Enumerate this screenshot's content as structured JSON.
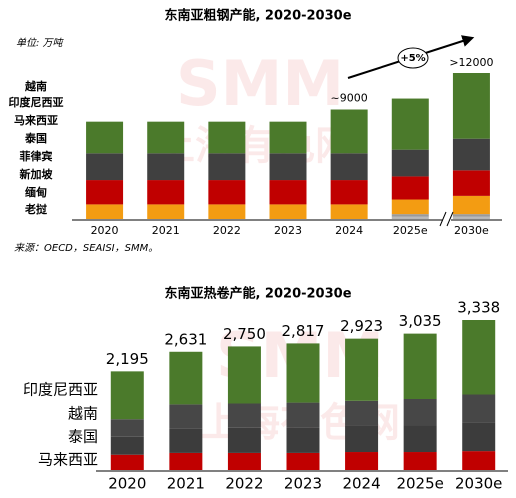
{
  "chart_data": [
    {
      "type": "stacked_bar",
      "title": "东南亚粗钢产能, 2020-2030e",
      "unit_label": "单位: 万吨",
      "source": "来源：OECD，SEAISI，SMM。",
      "watermark": [
        "SMM",
        "上海有色网"
      ],
      "annotations": [
        "~9000",
        ">12000",
        "+5%"
      ],
      "categories": [
        "2020",
        "2021",
        "2022",
        "2023",
        "2024",
        "2025e",
        "2030e"
      ],
      "series": [
        {
          "name": "越南",
          "color": "#4b7a2b",
          "values": [
            2600,
            2600,
            2600,
            2600,
            3600,
            4200,
            5400
          ]
        },
        {
          "name": "印度尼西亚",
          "color": "#404040",
          "values": [
            2200,
            2200,
            2200,
            2200,
            2200,
            2200,
            2600
          ]
        },
        {
          "name": "马来西亚",
          "color": "#c00000",
          "values": [
            2000,
            2000,
            2000,
            2000,
            2000,
            1900,
            2100
          ]
        },
        {
          "name": "泰国",
          "color": "#f39c12",
          "values": [
            1200,
            1200,
            1200,
            1200,
            1200,
            1200,
            1500
          ]
        },
        {
          "name": "菲律宾",
          "color": "#9a9a9a",
          "values": [
            0,
            0,
            0,
            0,
            0,
            200,
            200
          ]
        },
        {
          "name": "新加坡",
          "color": "#b5b5b5",
          "values": [
            0,
            0,
            0,
            0,
            0,
            100,
            100
          ]
        },
        {
          "name": "缅甸",
          "color": "#8a8a8a",
          "values": [
            0,
            0,
            0,
            0,
            0,
            50,
            50
          ]
        },
        {
          "name": "老挝",
          "color": "#cccccc",
          "values": [
            0,
            0,
            0,
            0,
            0,
            50,
            50
          ]
        }
      ]
    },
    {
      "type": "stacked_bar",
      "title": "东南亚热卷产能, 2020-2030e",
      "watermark": [
        "SMM",
        "上海有色网"
      ],
      "categories": [
        "2020",
        "2021",
        "2022",
        "2023",
        "2024",
        "2025e",
        "2030e"
      ],
      "totals": [
        2195,
        2631,
        2750,
        2817,
        2923,
        3035,
        3338
      ],
      "total_labels": [
        "2,195",
        "2,631",
        "2,750",
        "2,817",
        "2,923",
        "3,035",
        "3,338"
      ],
      "series": [
        {
          "name": "印度尼西亚",
          "color": "#4b7a2b",
          "values": [
            1065,
            1171,
            1270,
            1317,
            1383,
            1455,
            1658
          ]
        },
        {
          "name": "越南",
          "color": "#474747",
          "values": [
            390,
            530,
            540,
            550,
            560,
            580,
            620
          ]
        },
        {
          "name": "泰国",
          "color": "#3c3c3c",
          "values": [
            400,
            550,
            560,
            570,
            580,
            600,
            640
          ]
        },
        {
          "name": "马来西亚",
          "color": "#c00000",
          "values": [
            340,
            380,
            380,
            380,
            400,
            400,
            420
          ]
        }
      ]
    }
  ]
}
